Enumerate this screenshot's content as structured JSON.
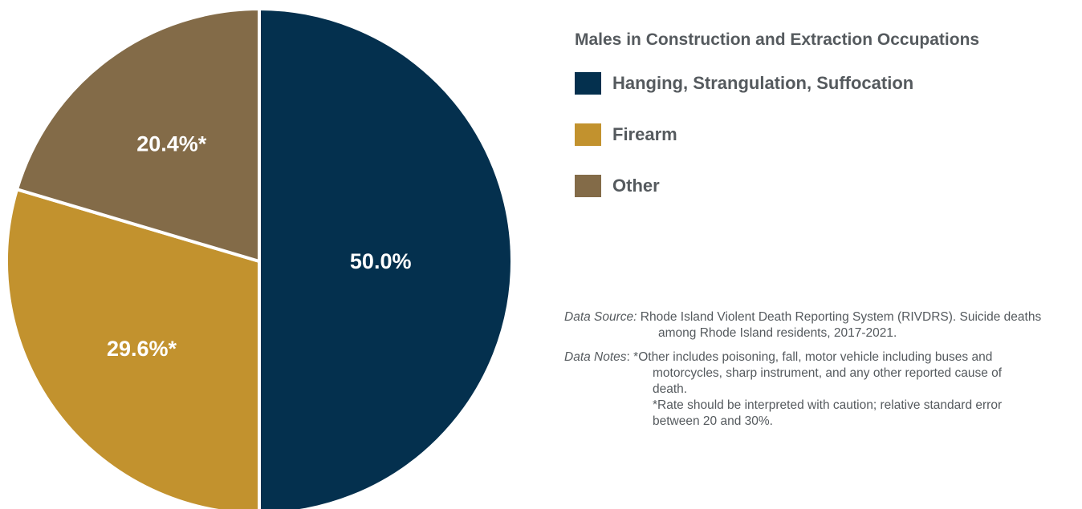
{
  "chart_data": {
    "type": "pie",
    "title": "Males in Construction and Extraction Occupations",
    "slices": [
      {
        "label": "Hanging, Strangulation, Suffocation",
        "value": 50.0,
        "display": "50.0%",
        "color": "#04304e"
      },
      {
        "label": "Firearm",
        "value": 29.6,
        "display": "29.6%*",
        "color": "#c2922e"
      },
      {
        "label": "Other",
        "value": 20.4,
        "display": "20.4%*",
        "color": "#836b48"
      }
    ],
    "legend_position": "right"
  },
  "notes": {
    "source_key": "Data Source:",
    "source_line1": " Rhode Island Violent Death Reporting System (RIVDRS). Suicide deaths",
    "source_line2": "among Rhode Island residents, 2017-2021.",
    "notes_key": "Data Notes",
    "notes_sep": ": ",
    "notes_line1": "*Other includes poisoning, fall, motor vehicle including buses and",
    "notes_line2": "motorcycles, sharp instrument, and any other reported cause of",
    "notes_line3": "death.",
    "notes_line4": "*Rate should be interpreted with caution; relative standard error",
    "notes_line5": "between 20 and 30%."
  }
}
